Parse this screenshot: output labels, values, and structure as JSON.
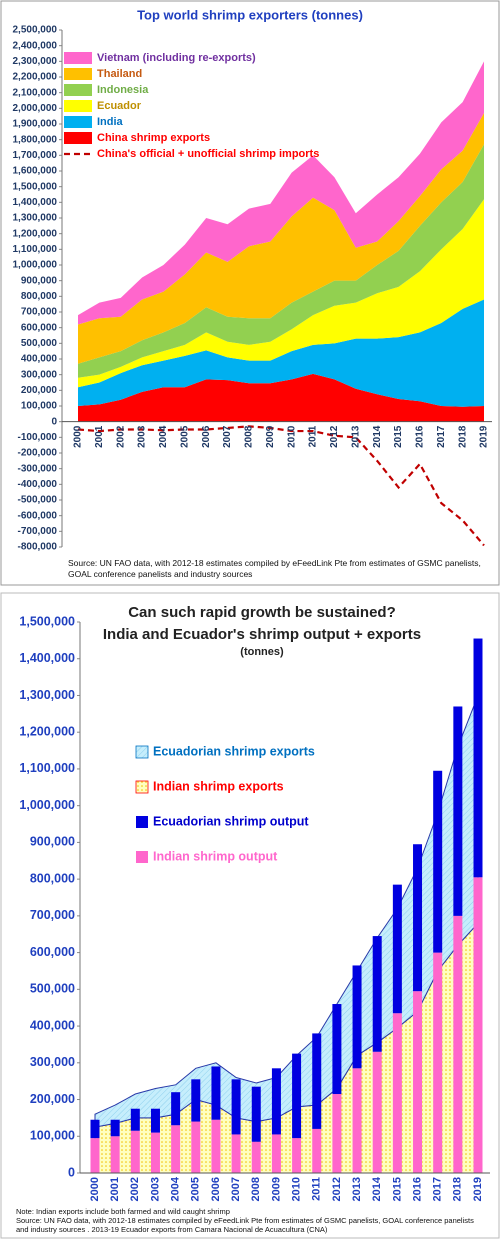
{
  "chart_data": [
    {
      "type": "stacked_area",
      "title": "Top world shrimp exporters (tonnes)",
      "source": "Source: UN FAO data, with 2012-18 estimates compiled by eFeedLink Pte from  estimates of GSMC panelists, GOAL conference panelists and industry sources",
      "categories": [
        "2000",
        "2001",
        "2002",
        "2003",
        "2004",
        "2005",
        "2006",
        "2007",
        "2008",
        "2009",
        "2010",
        "2011",
        "2012",
        "2013",
        "2014",
        "2015",
        "2016",
        "2017",
        "2018",
        "2019"
      ],
      "ylim": [
        -800000,
        2500000
      ],
      "yticks": [
        {
          "value": -800000,
          "label": "-800,000"
        },
        {
          "value": -700000,
          "label": "-700,000"
        },
        {
          "value": -600000,
          "label": "-600,000"
        },
        {
          "value": -500000,
          "label": "-500,000"
        },
        {
          "value": -400000,
          "label": "-400,000"
        },
        {
          "value": -300000,
          "label": "-300,000"
        },
        {
          "value": -200000,
          "label": "-200,000"
        },
        {
          "value": -100000,
          "label": "-100,000"
        },
        0,
        {
          "value": 100000,
          "label": "100,000"
        },
        {
          "value": 200000,
          "label": "200,000"
        },
        {
          "value": 300000,
          "label": "300,000"
        },
        {
          "value": 400000,
          "label": "400,000"
        },
        {
          "value": 500000,
          "label": "500,000"
        },
        {
          "value": 600000,
          "label": "600,000"
        },
        {
          "value": 700000,
          "label": "700,000"
        },
        {
          "value": 800000,
          "label": "800,000"
        },
        {
          "value": 900000,
          "label": "900,000"
        },
        {
          "value": 1000000,
          "label": "1,000,000"
        },
        {
          "value": 1100000,
          "label": "1,100,000"
        },
        {
          "value": 1200000,
          "label": "1,200,000"
        },
        {
          "value": 1300000,
          "label": "1,300,000"
        },
        {
          "value": 1400000,
          "label": "1,400,000"
        },
        {
          "value": 1500000,
          "label": "1,500,000"
        },
        {
          "value": 1600000,
          "label": "1,600,000"
        },
        {
          "value": 1700000,
          "label": "1,700,000"
        },
        {
          "value": 1800000,
          "label": "1,800,000"
        },
        {
          "value": 1900000,
          "label": "1,900,000"
        },
        {
          "value": 2000000,
          "label": "2,000,000"
        },
        {
          "value": 2100000,
          "label": "2,100,000"
        },
        {
          "value": 2200000,
          "label": "2,200,000"
        },
        {
          "value": 2300000,
          "label": "2,300,000"
        },
        {
          "value": 2400000,
          "label": "2,400,000"
        },
        {
          "value": 2500000,
          "label": "2,500,000"
        }
      ],
      "grid": false,
      "series": [
        {
          "name": "Vietnam (including re-exports)",
          "type": "area",
          "color": "#ff66cc",
          "label_color": "#7030a0",
          "values": [
            60000,
            100000,
            120000,
            140000,
            170000,
            190000,
            220000,
            240000,
            240000,
            240000,
            280000,
            270000,
            210000,
            220000,
            300000,
            280000,
            270000,
            300000,
            310000,
            330000
          ]
        },
        {
          "name": "Thailand",
          "type": "area",
          "color": "#ffc000",
          "label_color": "#c55a11",
          "values": [
            250000,
            250000,
            220000,
            260000,
            260000,
            310000,
            350000,
            350000,
            460000,
            490000,
            550000,
            600000,
            450000,
            210000,
            150000,
            190000,
            190000,
            210000,
            200000,
            200000
          ]
        },
        {
          "name": "Indonesia",
          "type": "area",
          "color": "#92d050",
          "label_color": "#70ad47",
          "values": [
            90000,
            110000,
            100000,
            110000,
            120000,
            140000,
            160000,
            160000,
            170000,
            150000,
            170000,
            150000,
            160000,
            140000,
            180000,
            230000,
            290000,
            300000,
            300000,
            350000
          ]
        },
        {
          "name": "Ecuador",
          "type": "area",
          "color": "#ffff00",
          "label_color": "#bf9000",
          "values": [
            60000,
            50000,
            40000,
            50000,
            60000,
            70000,
            115000,
            100000,
            100000,
            120000,
            140000,
            190000,
            240000,
            230000,
            290000,
            320000,
            390000,
            470000,
            510000,
            640000
          ]
        },
        {
          "name": "India",
          "type": "area",
          "color": "#00b0f0",
          "label_color": "#0070c0",
          "values": [
            120000,
            140000,
            170000,
            170000,
            170000,
            200000,
            185000,
            145000,
            145000,
            145000,
            180000,
            185000,
            230000,
            320000,
            355000,
            395000,
            440000,
            530000,
            625000,
            680000
          ]
        },
        {
          "name": "China shrimp exports",
          "type": "area",
          "color": "#ff0000",
          "label_color": "#ff0000",
          "values": [
            100000,
            110000,
            140000,
            190000,
            220000,
            220000,
            270000,
            265000,
            245000,
            245000,
            270000,
            305000,
            270000,
            210000,
            175000,
            145000,
            130000,
            100000,
            95000,
            100000
          ]
        },
        {
          "name": "China's official + unofficial shrimp imports",
          "type": "line",
          "dashed": true,
          "color": "#c00000",
          "label_color": "#ff0000",
          "values": [
            -50000,
            -60000,
            -50000,
            -50000,
            -55000,
            -50000,
            -50000,
            -40000,
            -30000,
            -40000,
            -60000,
            -60000,
            -90000,
            -100000,
            -250000,
            -420000,
            -270000,
            -520000,
            -630000,
            -790000
          ]
        }
      ]
    },
    {
      "type": "combo",
      "title": "Can such rapid growth be sustained?",
      "subtitle": "India and Ecuador's shrimp output + exports",
      "units": "(tonnes)",
      "notes": [
        "Note: Indian exports include both farmed and wild caught shrimp",
        "Source: UN FAO data, with 2012-18 estimates compiled by eFeedLink Pte from  estimates of GSMC panelists, GOAL conference panelists and industry sources . 2013-19 Ecuador exports from Camara Nacional de Acuacultura (CNA)"
      ],
      "categories": [
        "2000",
        "2001",
        "2002",
        "2003",
        "2004",
        "2005",
        "2006",
        "2007",
        "2008",
        "2009",
        "2010",
        "2011",
        "2012",
        "2013",
        "2014",
        "2015",
        "2016",
        "2017",
        "2018",
        "2019"
      ],
      "ylim": [
        0,
        1500000
      ],
      "yticks": [
        0,
        {
          "value": 100000,
          "label": "100,000"
        },
        {
          "value": 200000,
          "label": "200,000"
        },
        {
          "value": 300000,
          "label": "300,000"
        },
        {
          "value": 400000,
          "label": "400,000"
        },
        {
          "value": 500000,
          "label": "500,000"
        },
        {
          "value": 600000,
          "label": "600,000"
        },
        {
          "value": 700000,
          "label": "700,000"
        },
        {
          "value": 800000,
          "label": "800,000"
        },
        {
          "value": 900000,
          "label": "900,000"
        },
        {
          "value": 1000000,
          "label": "1,000,000"
        },
        {
          "value": 1100000,
          "label": "1,100,000"
        },
        {
          "value": 1200000,
          "label": "1,200,000"
        },
        {
          "value": 1300000,
          "label": "1,300,000"
        },
        {
          "value": 1400000,
          "label": "1,400,000"
        },
        {
          "value": 1500000,
          "label": "1,500,000"
        }
      ],
      "grid": false,
      "series": [
        {
          "name": "Ecuadorian shrimp exports",
          "type": "area",
          "color": "#c6eefc",
          "fill_pattern": "hatch",
          "line_color": "#2838a8",
          "label_color": "#0070c0",
          "values": [
            35000,
            50000,
            65000,
            80000,
            80000,
            85000,
            115000,
            110000,
            105000,
            110000,
            140000,
            185000,
            230000,
            230000,
            285000,
            325000,
            390000,
            430000,
            540000,
            620000
          ]
        },
        {
          "name": "Indian shrimp exports",
          "type": "area",
          "color": "#ffffc0",
          "fill_pattern": "dots",
          "line_color": "#2838a8",
          "label_color": "#ff0000",
          "values": [
            125000,
            135000,
            150000,
            150000,
            160000,
            200000,
            185000,
            150000,
            140000,
            150000,
            180000,
            185000,
            230000,
            320000,
            355000,
            395000,
            440000,
            550000,
            620000,
            680000
          ]
        },
        {
          "name": "Ecuadorian shrimp output",
          "type": "bar",
          "color": "#0000e0",
          "label_color": "#0000cc",
          "values": [
            50000,
            45000,
            60000,
            65000,
            90000,
            115000,
            145000,
            150000,
            150000,
            180000,
            230000,
            260000,
            245000,
            280000,
            315000,
            350000,
            400000,
            495000,
            570000,
            650000
          ]
        },
        {
          "name": "Indian shrimp output",
          "type": "bar",
          "color": "#ff66cc",
          "label_color": "#ff66cc",
          "values": [
            95000,
            100000,
            115000,
            110000,
            130000,
            140000,
            145000,
            105000,
            85000,
            105000,
            95000,
            120000,
            215000,
            285000,
            330000,
            435000,
            495000,
            600000,
            700000,
            805000
          ]
        }
      ]
    }
  ]
}
